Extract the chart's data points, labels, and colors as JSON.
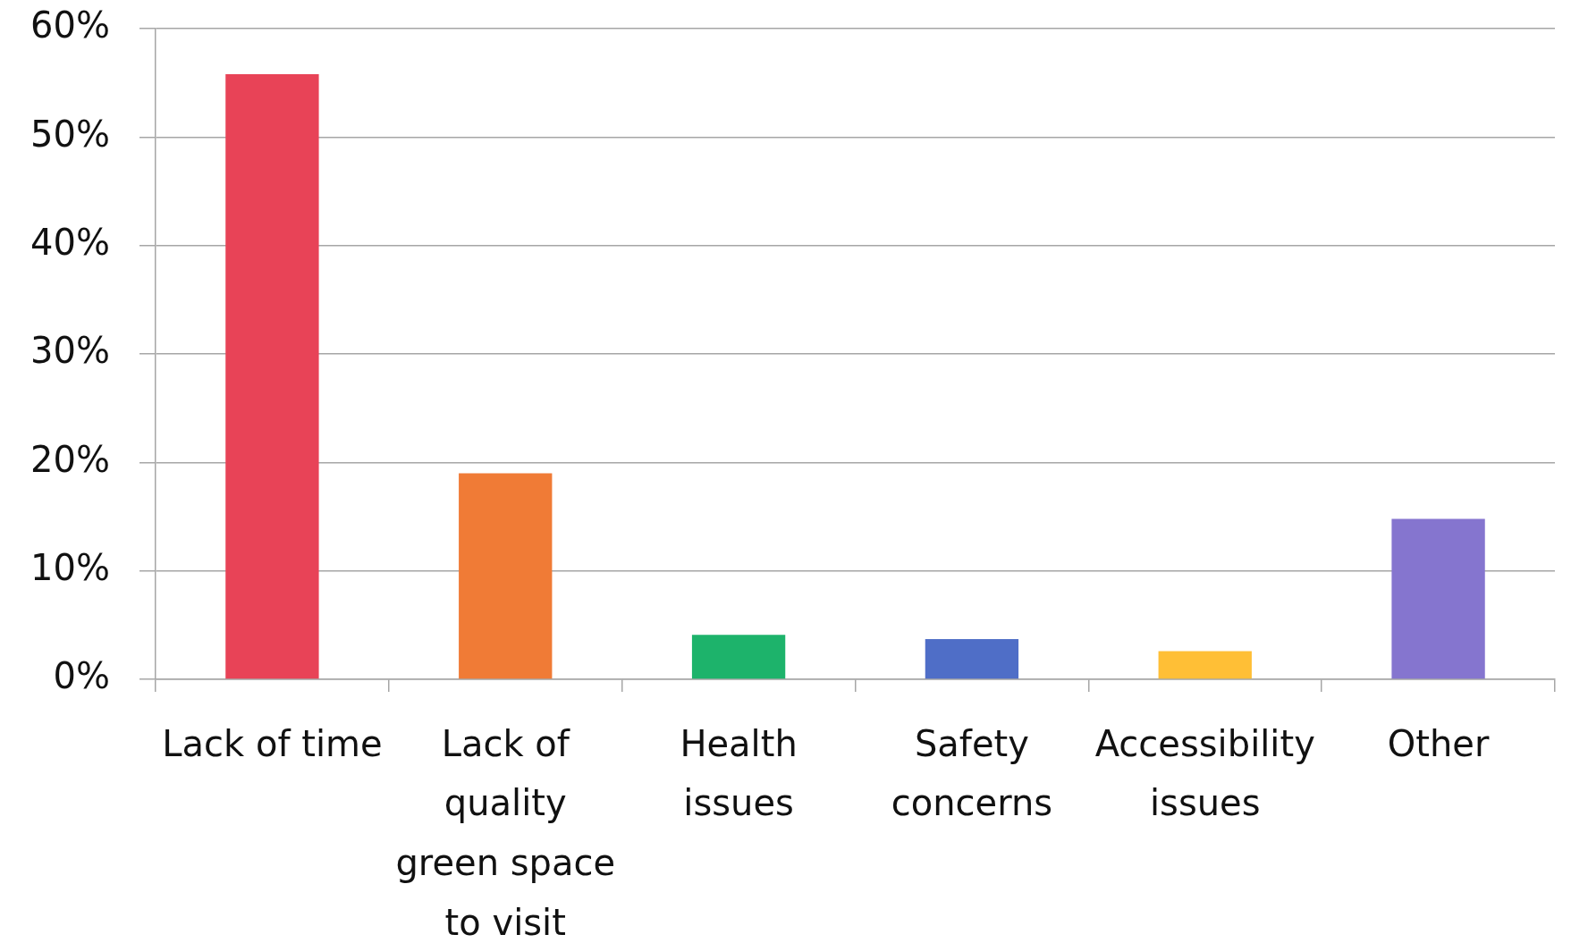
{
  "chart_data": {
    "type": "bar",
    "categories": [
      "Lack of time",
      "Lack of quality green space to visit",
      "Health issues",
      "Safety concerns",
      "Accessibility issues",
      "Other"
    ],
    "values": [
      55.8,
      19,
      4.1,
      3.7,
      2.6,
      14.8
    ],
    "colors": [
      "#e84357",
      "#f07b36",
      "#1db36b",
      "#4f6ec7",
      "#ffbf36",
      "#8575cf"
    ],
    "ylim": [
      0,
      60
    ],
    "yticks": [
      {
        "value": 0,
        "label": "0%"
      },
      {
        "value": 10,
        "label": "10%"
      },
      {
        "value": 20,
        "label": "20%"
      },
      {
        "value": 30,
        "label": "30%"
      },
      {
        "value": 40,
        "label": "40%"
      },
      {
        "value": 50,
        "label": "50%"
      },
      {
        "value": 60,
        "label": "60%"
      }
    ],
    "grid": "y",
    "legend": false
  }
}
